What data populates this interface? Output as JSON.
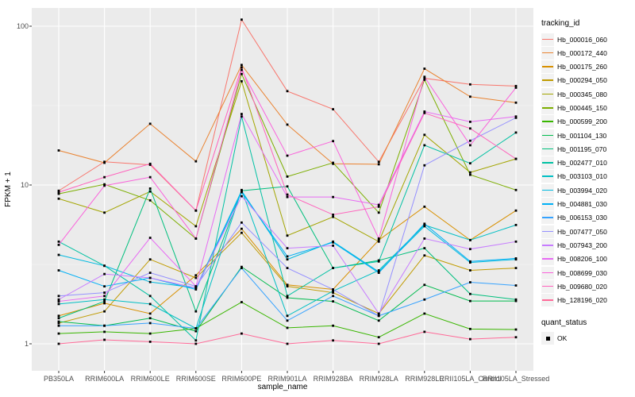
{
  "figure": {
    "x_axis_title": "sample_name",
    "y_axis_title": "FPKM + 1",
    "legend_title": "tracking_id",
    "quant_legend_title": "quant_status",
    "quant_items": [
      {
        "label": "OK",
        "shape": "filled-square",
        "color": "#000000"
      }
    ]
  },
  "style_colors": {
    "panel_bg": "#ebebeb",
    "grid_major": "#ffffff",
    "grid_minor": "#f5f5f5",
    "point_color": "#000000",
    "tick_color": "#333333",
    "tick_label_color": "#4d4d4d",
    "legend_key_bg": "#f2f2f2"
  },
  "chart_data": {
    "type": "line",
    "title": "",
    "xlabel": "sample_name",
    "ylabel": "FPKM + 1",
    "x_scale": "categorical",
    "y_scale": "log10",
    "ylim": [
      1,
      130
    ],
    "y_ticks": [
      1,
      10,
      100
    ],
    "y_minor_ticks": [
      3.162,
      31.62
    ],
    "grid": "on",
    "legend_position": "right",
    "point_shape": "filled-square",
    "categories": [
      "PB350LA",
      "RRIM600LA",
      "RRIM600LE",
      "RRIM600SE",
      "RRIM600PE",
      "RRIM901LA",
      "RRIM928BA",
      "RRIM928LA",
      "RRIM928LE",
      "RRII105LA_Control",
      "RRII105LA_Stressed"
    ],
    "series": [
      {
        "name": "Hb_000016_060",
        "color": "#F8766D",
        "values": [
          9.2,
          14,
          13.4,
          6.9,
          110,
          39,
          30,
          14,
          47,
          43,
          42
        ]
      },
      {
        "name": "Hb_000172_440",
        "color": "#EA8331",
        "values": [
          16.5,
          13.8,
          24.3,
          14.1,
          57,
          24,
          13.6,
          13.5,
          54,
          36,
          33
        ]
      },
      {
        "name": "Hb_000175_260",
        "color": "#D89000",
        "values": [
          1.5,
          1.8,
          1.55,
          2.7,
          5.3,
          2.35,
          2.2,
          4.5,
          7.3,
          4.5,
          6.9
        ]
      },
      {
        "name": "Hb_000294_050",
        "color": "#C09B00",
        "values": [
          1.35,
          1.6,
          3.4,
          2.6,
          5.0,
          2.3,
          2.1,
          1.55,
          3.6,
          2.9,
          3.0
        ]
      },
      {
        "name": "Hb_000345_080",
        "color": "#A3A500",
        "values": [
          8.2,
          6.7,
          9.1,
          5.5,
          45,
          4.8,
          6.3,
          4.4,
          20.7,
          12,
          14.6
        ]
      },
      {
        "name": "Hb_000445_150",
        "color": "#7CAE00",
        "values": [
          8.8,
          10.1,
          8.0,
          4.6,
          50,
          11.3,
          13.8,
          6.7,
          46,
          11.6,
          9.3
        ]
      },
      {
        "name": "Hb_000599_200",
        "color": "#39B600",
        "values": [
          1.16,
          1.19,
          1.16,
          1.25,
          1.83,
          1.26,
          1.3,
          1.1,
          1.55,
          1.24,
          1.23
        ]
      },
      {
        "name": "Hb_001104_130",
        "color": "#00BB4E",
        "values": [
          1.38,
          1.3,
          1.45,
          1.2,
          3.05,
          1.95,
          1.85,
          1.4,
          2.35,
          1.86,
          1.86
        ]
      },
      {
        "name": "Hb_001195_070",
        "color": "#00BF7D",
        "values": [
          1.45,
          1.85,
          9.5,
          1.6,
          9.2,
          9.8,
          3.0,
          3.35,
          4.0,
          2.06,
          1.9
        ]
      },
      {
        "name": "Hb_002477_010",
        "color": "#00C1A3",
        "values": [
          4.4,
          3.1,
          2.0,
          1.05,
          27,
          2.0,
          3.0,
          3.3,
          17.8,
          13.7,
          21.4
        ]
      },
      {
        "name": "Hb_003103_010",
        "color": "#00BFC4",
        "values": [
          1.78,
          1.9,
          1.78,
          1.25,
          9.3,
          1.5,
          2.15,
          2.9,
          5.6,
          4.5,
          5.6
        ]
      },
      {
        "name": "Hb_003994_020",
        "color": "#00BAE0",
        "values": [
          3.63,
          3.1,
          2.45,
          2.25,
          9.2,
          3.4,
          4.4,
          2.84,
          5.5,
          3.25,
          3.4
        ]
      },
      {
        "name": "Hb_004881_030",
        "color": "#00B0F6",
        "values": [
          2.9,
          2.3,
          2.6,
          2.2,
          9.0,
          3.55,
          4.35,
          2.8,
          5.7,
          3.3,
          3.45
        ]
      },
      {
        "name": "Hb_006153_030",
        "color": "#35A2FF",
        "values": [
          1.3,
          1.3,
          1.35,
          1.25,
          3.0,
          1.4,
          2.0,
          1.5,
          1.9,
          2.44,
          2.33
        ]
      },
      {
        "name": "Hb_007477_050",
        "color": "#9590FF",
        "values": [
          2.0,
          2.1,
          2.8,
          2.3,
          5.8,
          3.0,
          2.2,
          1.5,
          13.3,
          19,
          26.5
        ]
      },
      {
        "name": "Hb_007943_200",
        "color": "#C77CFF",
        "values": [
          1.9,
          2.75,
          2.6,
          2.25,
          8.5,
          4.0,
          4.15,
          1.55,
          4.6,
          3.95,
          4.4
        ]
      },
      {
        "name": "Hb_008206_100",
        "color": "#E76BF3",
        "values": [
          1.85,
          2.0,
          4.65,
          2.3,
          28,
          8.4,
          8.4,
          7.5,
          29,
          25,
          27
        ]
      },
      {
        "name": "Hb_008699_030",
        "color": "#FA62DB",
        "values": [
          4.2,
          9.9,
          11.2,
          4.6,
          53,
          15.3,
          18.9,
          4.6,
          48,
          17.8,
          41
        ]
      },
      {
        "name": "Hb_009680_020",
        "color": "#FF62BC",
        "values": [
          9.0,
          11.2,
          13.6,
          6.9,
          55,
          8.7,
          6.5,
          7.3,
          28.4,
          22.7,
          14.6
        ]
      },
      {
        "name": "Hb_128196_020",
        "color": "#FF6A98",
        "values": [
          1.0,
          1.06,
          1.03,
          1.0,
          1.16,
          1.0,
          1.05,
          1.0,
          1.19,
          1.07,
          1.1
        ]
      }
    ]
  }
}
